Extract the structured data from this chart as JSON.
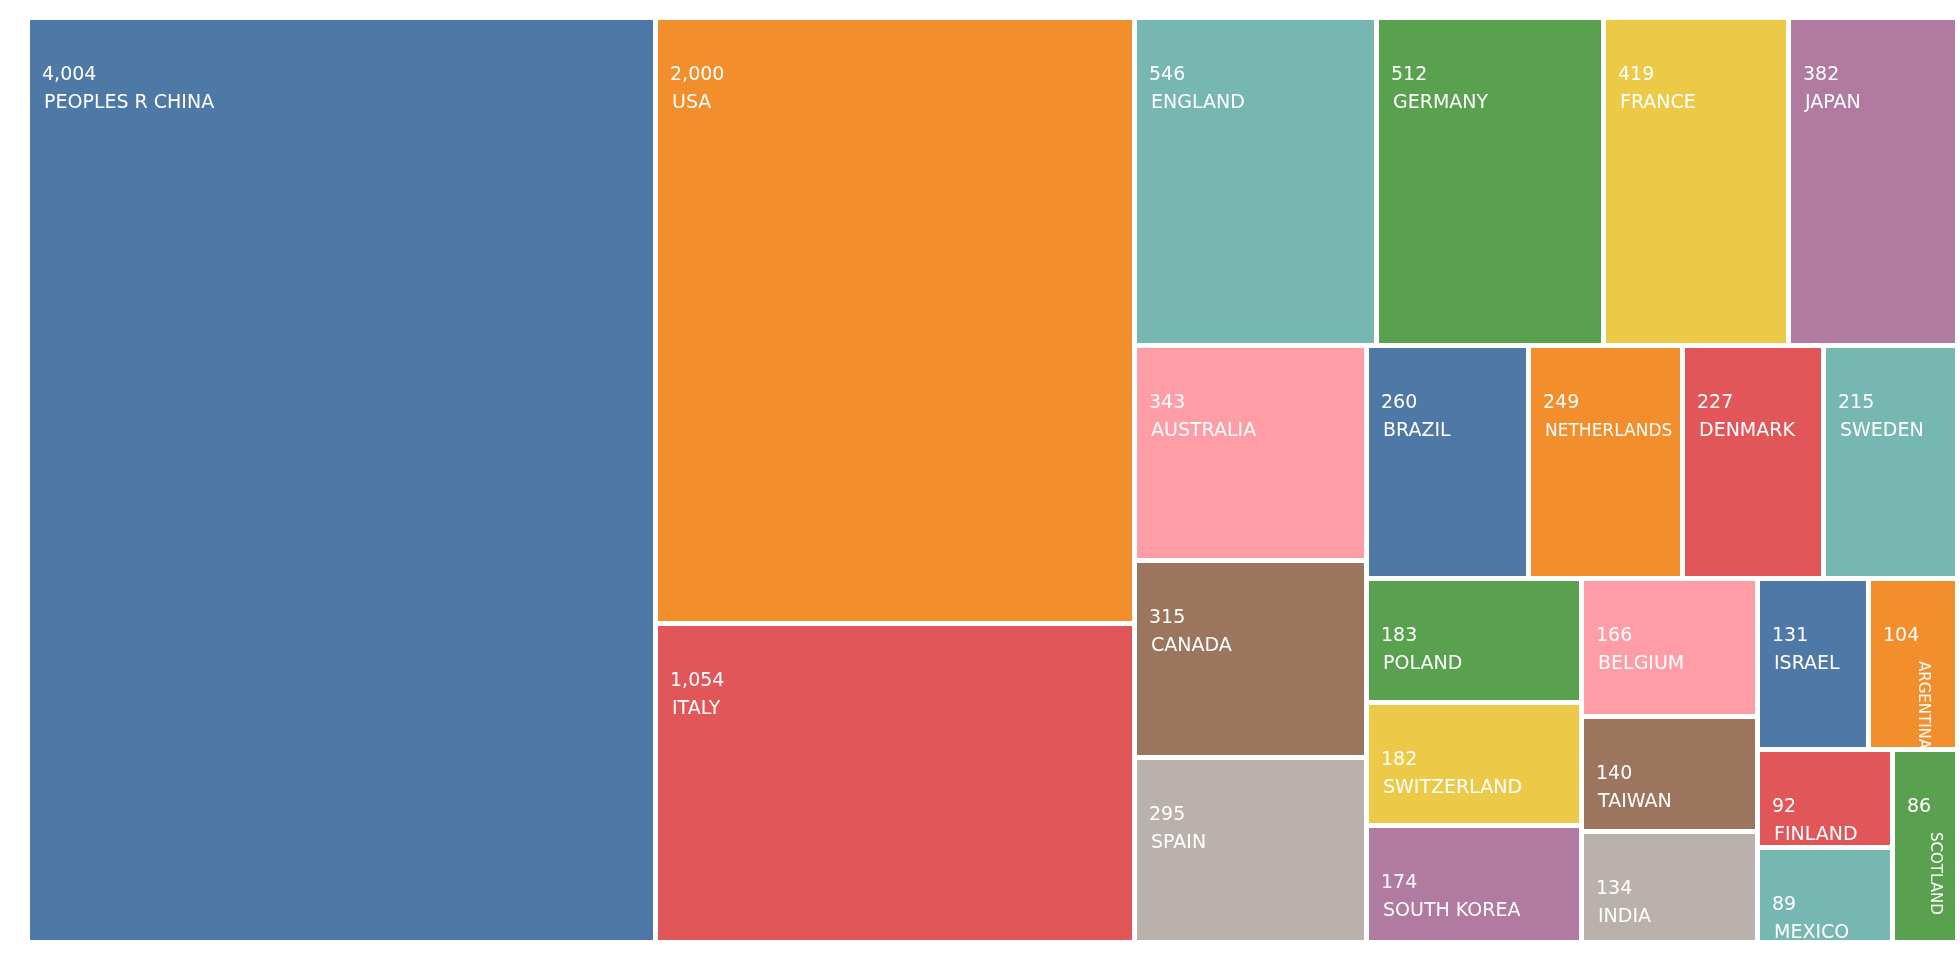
{
  "chart_data": {
    "type": "other",
    "categories": [
      "PEOPLES R CHINA",
      "USA",
      "ITALY",
      "ENGLAND",
      "GERMANY",
      "FRANCE",
      "JAPAN",
      "AUSTRALIA",
      "CANADA",
      "SPAIN",
      "BRAZIL",
      "NETHERLANDS",
      "DENMARK",
      "SWEDEN",
      "POLAND",
      "SWITZERLAND",
      "SOUTH KOREA",
      "BELGIUM",
      "TAIWAN",
      "INDIA",
      "ISRAEL",
      "ARGENTINA",
      "FINLAND",
      "MEXICO",
      "SCOTLAND"
    ],
    "values": [
      4004,
      2000,
      1054,
      546,
      512,
      419,
      382,
      343,
      315,
      295,
      260,
      249,
      227,
      215,
      183,
      182,
      174,
      166,
      140,
      134,
      131,
      104,
      92,
      89,
      86
    ],
    "value_labels": [
      "4,004",
      "2,000",
      "1,054",
      "546",
      "512",
      "419",
      "382",
      "343",
      "315",
      "295",
      "260",
      "249",
      "227",
      "215",
      "183",
      "182",
      "174",
      "166",
      "140",
      "134",
      "131",
      "104",
      "92",
      "89",
      "86"
    ],
    "colors": [
      "#4e79a7",
      "#f28e2b",
      "#e15759",
      "#76b7b2",
      "#59a14f",
      "#edc948",
      "#b07aa1",
      "#ff9da7",
      "#9c755f",
      "#bab0ac",
      "#4e79a7",
      "#f28e2b",
      "#e15759",
      "#76b7b2",
      "#59a14f",
      "#edc948",
      "#b07aa1",
      "#ff9da7",
      "#9c755f",
      "#bab0ac",
      "#4e79a7",
      "#f28e2b",
      "#e15759",
      "#76b7b2",
      "#59a14f"
    ]
  }
}
